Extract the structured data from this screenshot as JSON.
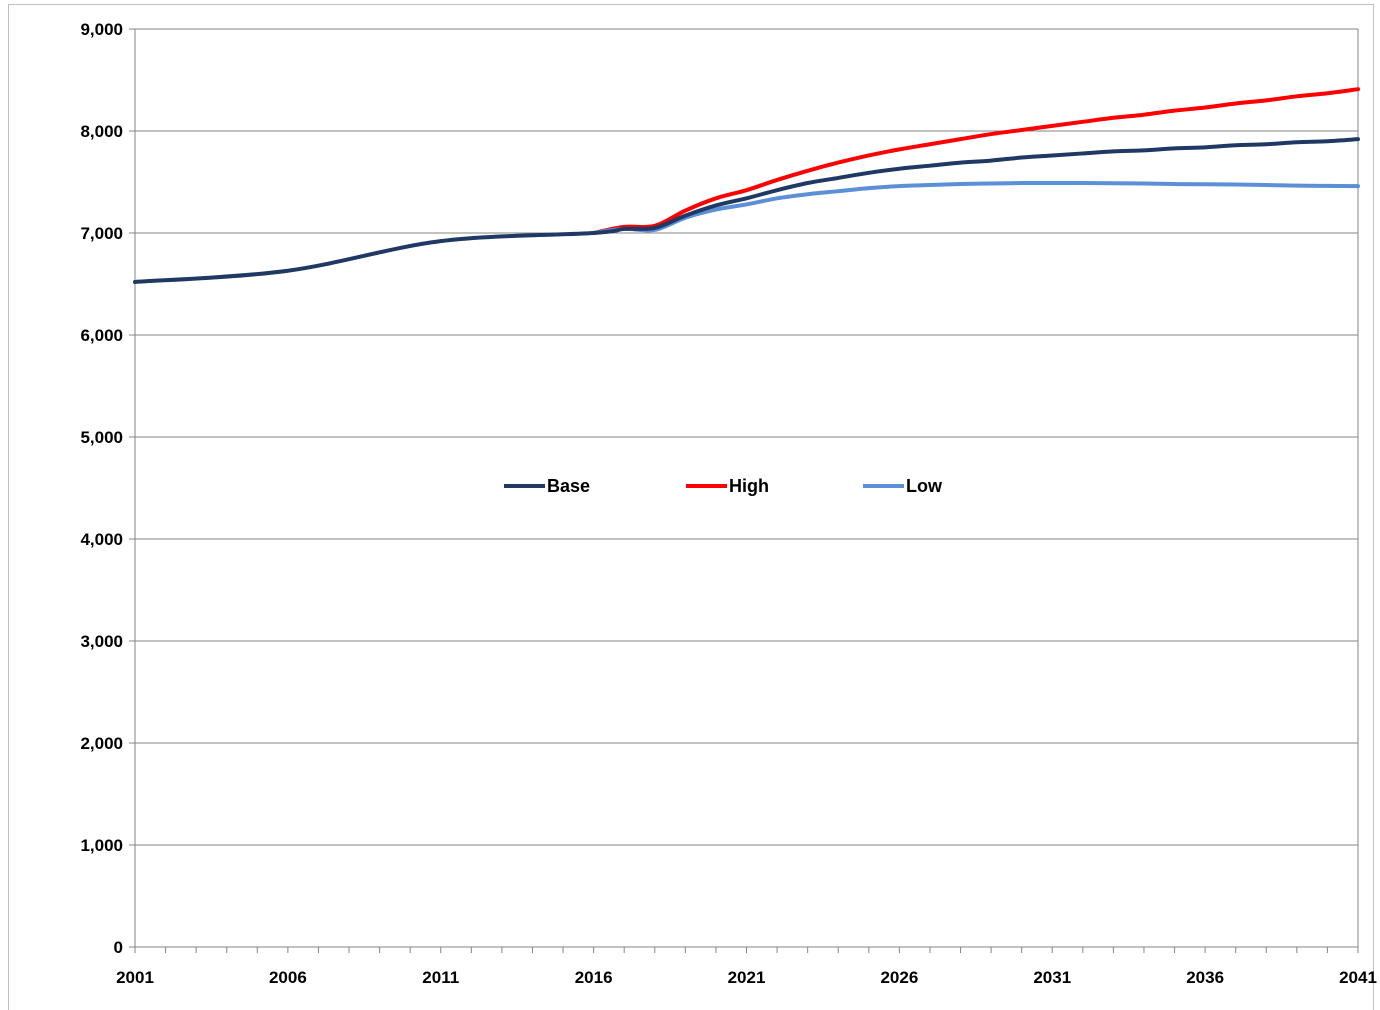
{
  "chart_data": {
    "type": "line",
    "title": "",
    "xlabel": "",
    "ylabel": "",
    "x_ticks": [
      "2001",
      "2006",
      "2011",
      "2016",
      "2021",
      "2026",
      "2031",
      "2036",
      "2041"
    ],
    "y_ticks": [
      "0",
      "1,000",
      "2,000",
      "3,000",
      "4,000",
      "5,000",
      "6,000",
      "7,000",
      "8,000",
      "9,000"
    ],
    "xlim": [
      2001,
      2041
    ],
    "ylim": [
      0,
      9000
    ],
    "grid": "horizontal",
    "legend_position": "center",
    "series": [
      {
        "name": "Base",
        "color": "#1f3864",
        "x": [
          2001,
          2006,
          2011,
          2016,
          2017,
          2018,
          2019,
          2020,
          2021,
          2022,
          2023,
          2024,
          2025,
          2026,
          2027,
          2028,
          2029,
          2030,
          2031,
          2032,
          2033,
          2034,
          2035,
          2036,
          2037,
          2038,
          2039,
          2040,
          2041
        ],
        "values": [
          6520,
          6630,
          6920,
          7000,
          7040,
          7050,
          7170,
          7270,
          7340,
          7420,
          7490,
          7540,
          7590,
          7630,
          7660,
          7690,
          7710,
          7740,
          7760,
          7780,
          7800,
          7810,
          7830,
          7840,
          7860,
          7870,
          7890,
          7900,
          7920
        ]
      },
      {
        "name": "High",
        "color": "#ff0000",
        "x": [
          2016,
          2017,
          2018,
          2019,
          2020,
          2021,
          2022,
          2023,
          2024,
          2025,
          2026,
          2027,
          2028,
          2029,
          2030,
          2031,
          2032,
          2033,
          2034,
          2035,
          2036,
          2037,
          2038,
          2039,
          2040,
          2041
        ],
        "values": [
          7000,
          7060,
          7070,
          7220,
          7340,
          7420,
          7520,
          7610,
          7690,
          7760,
          7820,
          7870,
          7920,
          7970,
          8010,
          8050,
          8090,
          8130,
          8160,
          8200,
          8230,
          8270,
          8300,
          8340,
          8370,
          8410
        ]
      },
      {
        "name": "Low",
        "color": "#5b8fd6",
        "x": [
          2016,
          2017,
          2018,
          2019,
          2020,
          2021,
          2022,
          2023,
          2024,
          2025,
          2026,
          2027,
          2028,
          2029,
          2030,
          2031,
          2032,
          2033,
          2034,
          2035,
          2036,
          2037,
          2038,
          2039,
          2040,
          2041
        ],
        "values": [
          7000,
          7040,
          7030,
          7150,
          7230,
          7280,
          7340,
          7380,
          7410,
          7440,
          7460,
          7470,
          7480,
          7485,
          7490,
          7490,
          7490,
          7488,
          7485,
          7480,
          7478,
          7475,
          7470,
          7465,
          7462,
          7460
        ]
      }
    ]
  }
}
